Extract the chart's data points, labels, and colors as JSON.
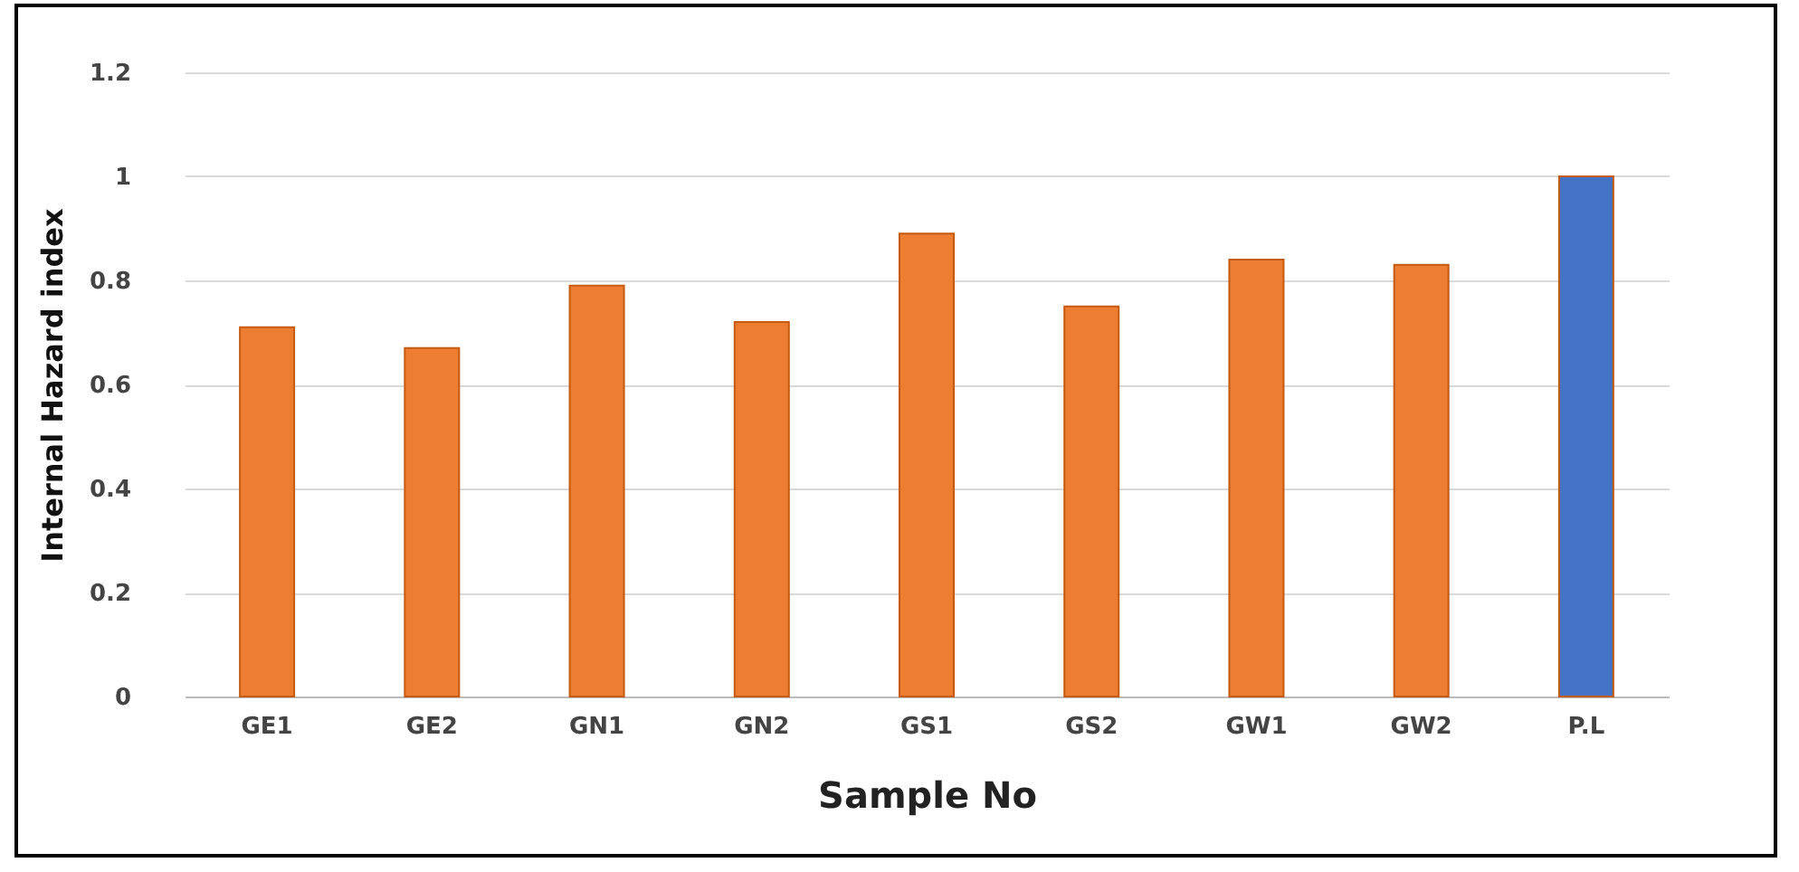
{
  "chart_data": {
    "type": "bar",
    "xlabel": "Sample No",
    "ylabel": "Internal Hazard index",
    "categories": [
      "GE1",
      "GE2",
      "GN1",
      "GN2",
      "GS1",
      "GS2",
      "GW1",
      "GW2",
      "P.L"
    ],
    "values": [
      0.71,
      0.67,
      0.79,
      0.72,
      0.89,
      0.75,
      0.84,
      0.83,
      1.0
    ],
    "colors": [
      "#ed7d31",
      "#ed7d31",
      "#ed7d31",
      "#ed7d31",
      "#ed7d31",
      "#ed7d31",
      "#ed7d31",
      "#ed7d31",
      "#4472c4"
    ],
    "ylim": [
      0,
      1.2
    ],
    "yticks": [
      0,
      0.2,
      0.4,
      0.6,
      0.8,
      1,
      1.2
    ],
    "grid": "y"
  }
}
